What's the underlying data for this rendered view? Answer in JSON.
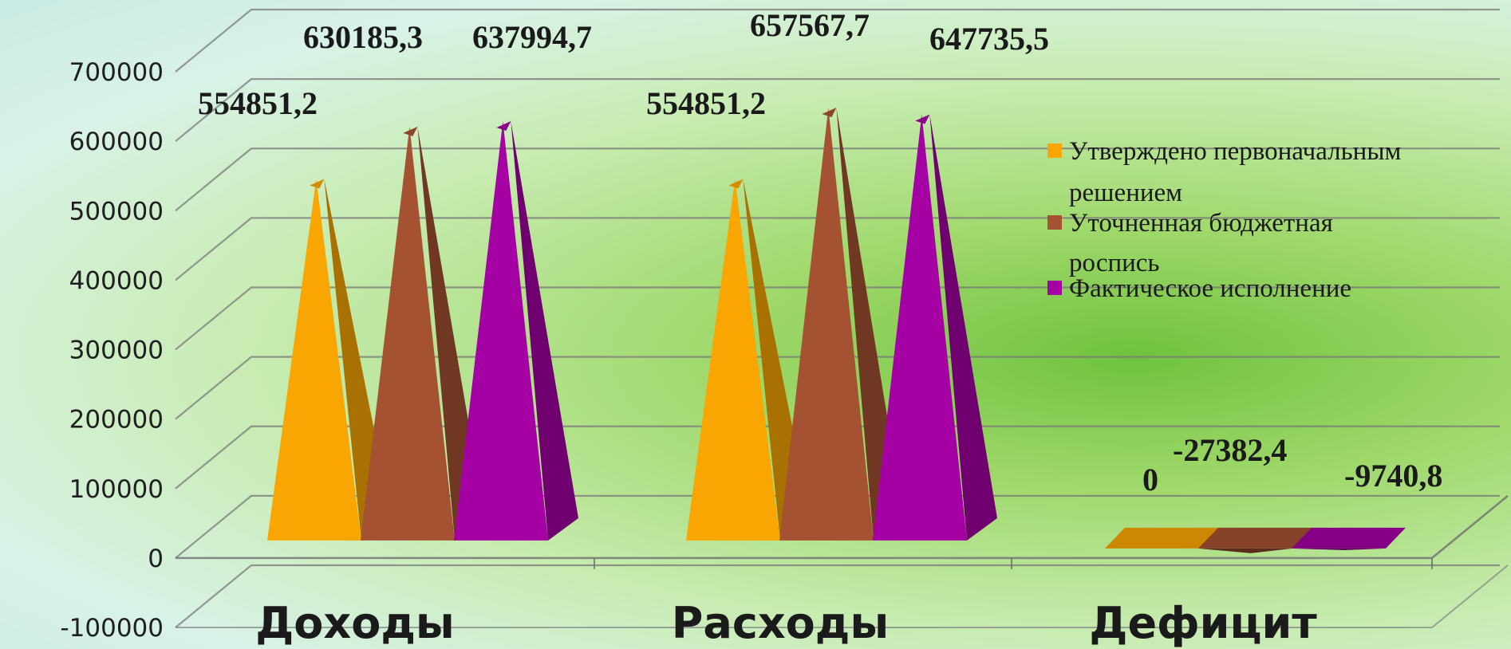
{
  "chart_data": {
    "type": "bar",
    "shape": "pyramid-3d",
    "categories": [
      "Доходы",
      "Расходы",
      "Дефицит"
    ],
    "series": [
      {
        "name": "Утверждено первоначальным решением",
        "color": "#f9a602",
        "values": [
          554851.2,
          554851.2,
          0
        ]
      },
      {
        "name": "Уточненная бюджетная роспись",
        "color": "#a55232",
        "values": [
          630185.3,
          657567.7,
          -27382.4
        ]
      },
      {
        "name": "Фактическое исполнение",
        "color": "#a400a4",
        "values": [
          637994.7,
          647735.5,
          -9740.8
        ]
      }
    ],
    "data_labels": [
      [
        "554851,2",
        "554851,2",
        "0"
      ],
      [
        "630185,3",
        "657567,7",
        "-27382,4"
      ],
      [
        "637994,7",
        "647735,5",
        "-9740,8"
      ]
    ],
    "yticks": [
      "700000",
      "600000",
      "500000",
      "400000",
      "300000",
      "200000",
      "100000",
      "0",
      "-100000"
    ],
    "ylim": [
      -100000,
      700000
    ],
    "grid": true,
    "legend_position": "right"
  }
}
